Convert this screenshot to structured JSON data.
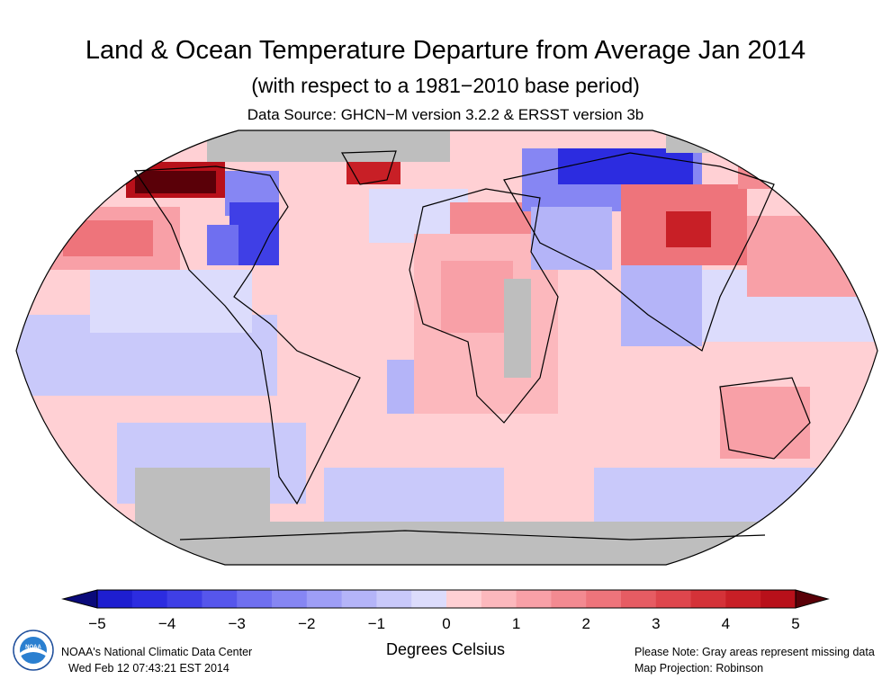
{
  "title": "Land & Ocean Temperature Departure from Average Jan 2014",
  "subtitle": "(with respect to a 1981−2010 base period)",
  "source": "Data Source: GHCN−M version 3.2.2 & ERSST version 3b",
  "colorbar": {
    "ticks": [
      "−5",
      "−4",
      "−3",
      "−2",
      "−1",
      "0",
      "1",
      "2",
      "3",
      "4",
      "5"
    ],
    "units": "Degrees Celsius",
    "range": [
      -5,
      5
    ],
    "colors_cool": [
      "#0a0a7a",
      "#1e1ed0",
      "#2c2ce0",
      "#3f3fe6",
      "#5656ec",
      "#6f6ff0",
      "#8686f3",
      "#9e9ef6",
      "#b4b4f8",
      "#c9c9fa",
      "#dcdcfc"
    ],
    "colors_warm": [
      "#ffd0d4",
      "#fcb8bd",
      "#f8a0a7",
      "#f38a91",
      "#ee747b",
      "#e65c63",
      "#de464d",
      "#d43238",
      "#c81f26",
      "#b8101a",
      "#5a0008"
    ],
    "missing_color": "#bebebe"
  },
  "map": {
    "projection": "Robinson",
    "anomaly_regions": [
      {
        "name": "alaska-nw-canada",
        "anomaly": 4.5
      },
      {
        "name": "eastern-north-america",
        "anomaly": -3.5
      },
      {
        "name": "greenland",
        "anomaly": 4.5
      },
      {
        "name": "eastern-russia",
        "anomaly": -4.0
      },
      {
        "name": "mongolia-china",
        "anomaly": 3.5
      },
      {
        "name": "europe",
        "anomaly": 2.0
      },
      {
        "name": "north-pacific",
        "anomaly": 2.5
      },
      {
        "name": "australia",
        "anomaly": 2.0
      }
    ]
  },
  "footer": {
    "org": "NOAA's National Climatic Data Center",
    "timestamp": "Wed Feb 12 07:43:21 EST 2014",
    "note": "Please Note: Gray areas represent missing data",
    "projection": "Map Projection: Robinson",
    "logo_text": "NOAA"
  }
}
